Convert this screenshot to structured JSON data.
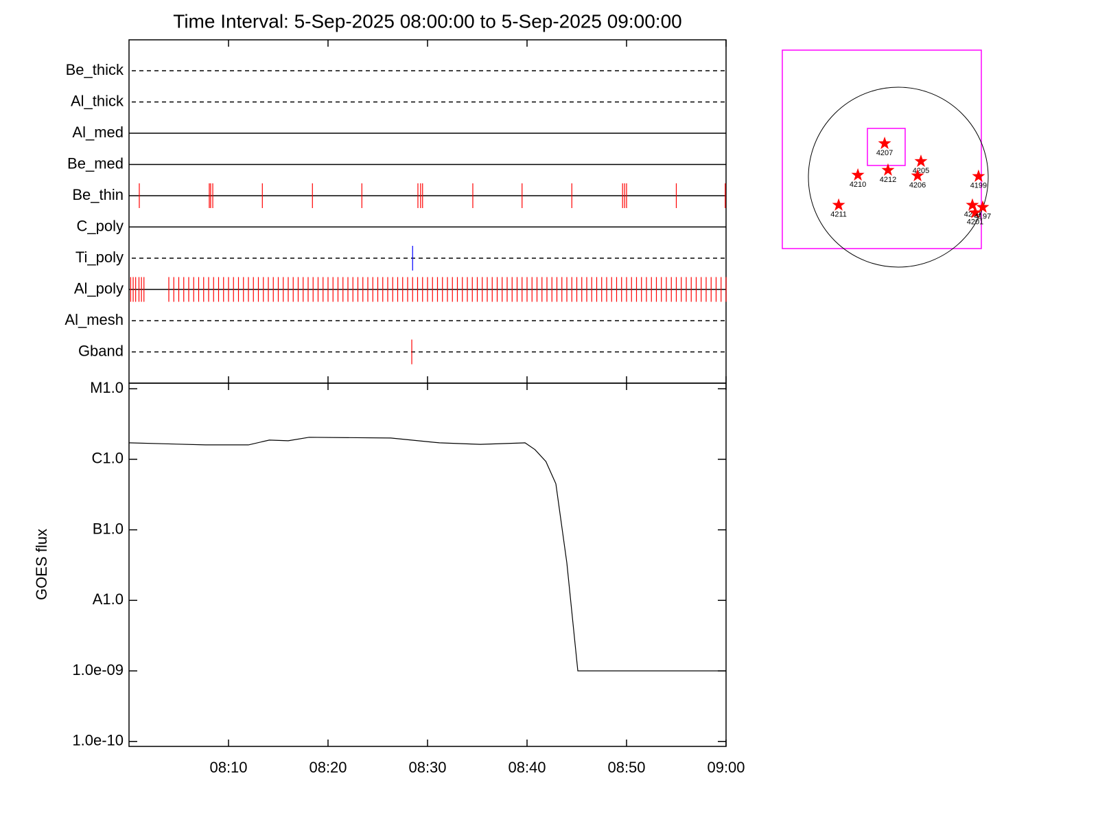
{
  "chart_data": [
    {
      "type": "event",
      "title": "Time Interval:  5-Sep-2025 08:00:00 to  5-Sep-2025 09:00:00",
      "xlim": [
        "08:00",
        "09:00"
      ],
      "series": [
        {
          "name": "Be_thick",
          "style": "dashed",
          "color": "#ff0000",
          "times": []
        },
        {
          "name": "Al_thick",
          "style": "dashed",
          "color": "#ff0000",
          "times": []
        },
        {
          "name": "Al_med",
          "style": "solid",
          "color": "#ff0000",
          "times": []
        },
        {
          "name": "Be_med",
          "style": "solid",
          "color": "#ff0000",
          "times": []
        },
        {
          "name": "Be_thin",
          "style": "solid",
          "color": "#ff0000",
          "times": [
            "08:01:02",
            "08:08:04",
            "08:08:12",
            "08:08:25",
            "08:13:24",
            "08:18:26",
            "08:23:24",
            "08:29:02",
            "08:29:18",
            "08:29:30",
            "08:34:33",
            "08:39:30",
            "08:44:30",
            "08:49:36",
            "08:49:48",
            "08:50:00",
            "08:55:00",
            "08:59:55"
          ]
        },
        {
          "name": "C_poly",
          "style": "solid",
          "color": "#ff0000",
          "times": []
        },
        {
          "name": "Ti_poly",
          "style": "dashed",
          "color": "#0000ff",
          "times": [
            "08:28:30"
          ]
        },
        {
          "name": "Al_poly",
          "style": "solid",
          "color": "#ff0000",
          "times": [
            "08:00:10",
            "08:00:25",
            "08:00:40",
            "08:01:00",
            "08:01:15",
            "08:01:30",
            "08:04:00",
            "08:04:30",
            "08:05:00",
            "08:05:30",
            "08:06:00",
            "08:06:30",
            "08:07:00",
            "08:07:30",
            "08:08:00",
            "08:08:30",
            "08:09:00",
            "08:09:30",
            "08:10:00",
            "08:10:30",
            "08:11:00",
            "08:11:30",
            "08:12:00",
            "08:12:30",
            "08:13:00",
            "08:13:30",
            "08:14:00",
            "08:14:30",
            "08:15:00",
            "08:15:30",
            "08:16:00",
            "08:16:30",
            "08:17:00",
            "08:17:30",
            "08:18:00",
            "08:18:30",
            "08:19:00",
            "08:19:30",
            "08:20:00",
            "08:20:30",
            "08:21:00",
            "08:21:30",
            "08:22:00",
            "08:22:30",
            "08:23:00",
            "08:23:30",
            "08:24:00",
            "08:24:30",
            "08:25:00",
            "08:25:30",
            "08:26:00",
            "08:26:30",
            "08:27:00",
            "08:27:30",
            "08:28:00",
            "08:28:30",
            "08:29:00",
            "08:29:30",
            "08:30:00",
            "08:30:30",
            "08:31:00",
            "08:31:30",
            "08:32:00",
            "08:32:30",
            "08:33:00",
            "08:33:30",
            "08:34:00",
            "08:34:30",
            "08:35:00",
            "08:35:30",
            "08:36:00",
            "08:36:30",
            "08:37:00",
            "08:37:30",
            "08:38:00",
            "08:38:30",
            "08:39:00",
            "08:39:30",
            "08:40:00",
            "08:40:30",
            "08:41:00",
            "08:41:30",
            "08:42:00",
            "08:42:30",
            "08:43:00",
            "08:43:30",
            "08:44:00",
            "08:44:30",
            "08:45:00",
            "08:45:30",
            "08:46:00",
            "08:46:30",
            "08:47:00",
            "08:47:30",
            "08:48:00",
            "08:48:30",
            "08:49:00",
            "08:49:30",
            "08:50:00",
            "08:50:30",
            "08:51:00",
            "08:51:30",
            "08:52:00",
            "08:52:30",
            "08:53:00",
            "08:53:30",
            "08:54:00",
            "08:54:30",
            "08:55:00",
            "08:55:30",
            "08:56:00",
            "08:56:30",
            "08:57:00",
            "08:57:30",
            "08:58:00",
            "08:58:30",
            "08:59:00",
            "08:59:30",
            "09:00:00"
          ]
        },
        {
          "name": "Al_mesh",
          "style": "dashed",
          "color": "#ff0000",
          "times": []
        },
        {
          "name": "Gband",
          "style": "dashed",
          "color": "#ff0000",
          "times": [
            "08:28:25"
          ]
        }
      ]
    },
    {
      "type": "line",
      "ylabel": "GOES flux",
      "log": true,
      "color": "#000000",
      "xlim": [
        "08:00",
        "09:00"
      ],
      "xticks": [
        "08:10",
        "08:20",
        "08:30",
        "08:40",
        "08:50",
        "09:00"
      ],
      "ylim": [
        8.5e-11,
        1.2e-05
      ],
      "yticks": [
        {
          "value": 1e-10,
          "label": "1.0e-10"
        },
        {
          "value": 1e-09,
          "label": "1.0e-09"
        },
        {
          "value": 1e-08,
          "label": "A1.0"
        },
        {
          "value": 1e-07,
          "label": "B1.0"
        },
        {
          "value": 1e-06,
          "label": "C1.0"
        },
        {
          "value": 1e-05,
          "label": "M1.0"
        }
      ],
      "x": [
        "08:00:00",
        "08:07:42",
        "08:12:00",
        "08:14:06",
        "08:16:00",
        "08:18:06",
        "08:26:18",
        "08:31:12",
        "08:35:18",
        "08:39:48",
        "08:40:48",
        "08:41:54",
        "08:42:54",
        "08:44:00",
        "08:45:06",
        "09:00:00"
      ],
      "values": [
        1.71e-06,
        1.6e-06,
        1.6e-06,
        1.87e-06,
        1.83e-06,
        2.05e-06,
        2e-06,
        1.71e-06,
        1.63e-06,
        1.71e-06,
        1.37e-06,
        9.3e-07,
        4.5e-07,
        3.4e-08,
        1e-09,
        1e-09
      ]
    },
    {
      "type": "scatter",
      "color": "#ff0000",
      "xlim": [
        -1000,
        1000
      ],
      "ylim": [
        -1000,
        1000
      ],
      "labels": [
        "4207",
        "4205",
        "4212",
        "4206",
        "4210",
        "4199",
        "4211",
        "4202",
        "4201",
        "4197"
      ],
      "x": [
        28,
        393,
        62,
        359,
        -241,
        972,
        -434,
        910,
        938,
        1014
      ],
      "y": [
        59,
        -121,
        -210,
        -266,
        -259,
        -272,
        -562,
        -562,
        -638,
        -583
      ]
    }
  ]
}
